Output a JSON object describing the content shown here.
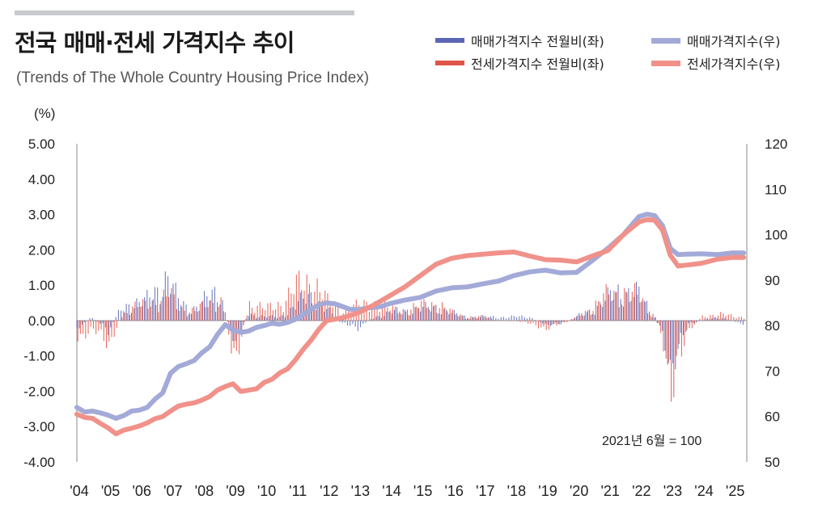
{
  "header": {
    "title": "전국 매매·전세 가격지수 추이",
    "subtitle": "(Trends of The Whole Country Housing Price Index)"
  },
  "legend": {
    "items": [
      {
        "label": "매매가격지수 전월비(좌)",
        "color": "#5b67b3"
      },
      {
        "label": "전세가격지수 전월비(좌)",
        "color": "#e0554a"
      },
      {
        "label": "매매가격지수(우)",
        "color": "#a3aad8"
      },
      {
        "label": "전세가격지수(우)",
        "color": "#f0918a"
      }
    ]
  },
  "chart_data": {
    "type": "bar+line",
    "title": "전국 매매·전세 가격지수 추이",
    "subtitle": "(Trends of The Whole Country Housing Price Index)",
    "y_left_label": "(%)",
    "y_left_range": [
      -4.0,
      5.0
    ],
    "y_left_ticks": [
      "5.00",
      "4.00",
      "3.00",
      "2.00",
      "1.00",
      "0.00",
      "-1.00",
      "-2.00",
      "-3.00",
      "-4.00"
    ],
    "y_right_range": [
      50,
      120
    ],
    "y_right_ticks": [
      "120",
      "110",
      "100",
      "90",
      "80",
      "70",
      "60",
      "50"
    ],
    "x_ticks": [
      "'04",
      "'05",
      "'06",
      "'07",
      "'08",
      "'09",
      "'10",
      "'11",
      "'12",
      "'13",
      "'14",
      "'15",
      "'16",
      "'17",
      "'18",
      "'19",
      "'20",
      "'21",
      "'22",
      "'23",
      "'24",
      "'25"
    ],
    "annotation": "2021년 6월 = 100",
    "series": [
      {
        "name": "매매가격지수(우)",
        "axis": "right",
        "color": "#a3aad8",
        "x": [
          2004.0,
          2004.25,
          2004.5,
          2004.75,
          2005.0,
          2005.25,
          2005.5,
          2005.75,
          2006.0,
          2006.25,
          2006.5,
          2006.75,
          2007.0,
          2007.25,
          2007.5,
          2007.75,
          2008.0,
          2008.25,
          2008.5,
          2008.75,
          2009.0,
          2009.25,
          2009.5,
          2009.75,
          2010.0,
          2010.25,
          2010.5,
          2010.75,
          2011.0,
          2011.25,
          2011.5,
          2011.75,
          2012.0,
          2012.25,
          2012.5,
          2012.75,
          2013.0,
          2013.25,
          2013.5,
          2013.75,
          2014.0,
          2014.5,
          2015.0,
          2015.5,
          2016.0,
          2016.5,
          2017.0,
          2017.5,
          2018.0,
          2018.5,
          2019.0,
          2019.5,
          2020.0,
          2020.5,
          2021.0,
          2021.5,
          2022.0,
          2022.25,
          2022.5,
          2022.75,
          2023.0,
          2023.25,
          2023.5,
          2024.0,
          2024.5,
          2025.0,
          2025.35
        ],
        "values": [
          62.0,
          61.0,
          61.2,
          60.8,
          60.3,
          59.6,
          60.2,
          61.2,
          61.4,
          62.0,
          63.8,
          65.2,
          69.5,
          71.0,
          71.6,
          72.3,
          74.0,
          75.3,
          78.0,
          80.2,
          79.0,
          78.5,
          78.8,
          79.6,
          80.0,
          80.5,
          80.3,
          80.7,
          81.4,
          82.5,
          83.6,
          84.6,
          85.0,
          84.8,
          84.2,
          83.6,
          83.5,
          83.8,
          84.0,
          84.2,
          84.8,
          85.6,
          86.2,
          87.6,
          88.3,
          88.5,
          89.2,
          89.8,
          91.0,
          91.8,
          92.2,
          91.6,
          91.7,
          94.3,
          97.0,
          100.0,
          104.0,
          104.5,
          104.2,
          102.0,
          97.0,
          95.6,
          95.7,
          95.8,
          95.6,
          96.0,
          96.0
        ]
      },
      {
        "name": "전세가격지수(우)",
        "axis": "right",
        "color": "#f0918a",
        "x": [
          2004.0,
          2004.25,
          2004.5,
          2004.75,
          2005.0,
          2005.25,
          2005.5,
          2005.75,
          2006.0,
          2006.25,
          2006.5,
          2006.75,
          2007.0,
          2007.25,
          2007.5,
          2007.75,
          2008.0,
          2008.25,
          2008.5,
          2008.75,
          2009.0,
          2009.25,
          2009.5,
          2009.75,
          2010.0,
          2010.25,
          2010.5,
          2010.75,
          2011.0,
          2011.25,
          2011.5,
          2011.75,
          2012.0,
          2012.5,
          2013.0,
          2013.5,
          2014.0,
          2014.5,
          2015.0,
          2015.5,
          2016.0,
          2016.5,
          2017.0,
          2017.5,
          2018.0,
          2018.5,
          2019.0,
          2019.5,
          2020.0,
          2020.5,
          2021.0,
          2021.5,
          2022.0,
          2022.25,
          2022.5,
          2022.75,
          2023.0,
          2023.25,
          2023.5,
          2024.0,
          2024.5,
          2025.0,
          2025.35
        ],
        "values": [
          60.5,
          59.8,
          59.6,
          58.5,
          57.5,
          56.2,
          57.0,
          57.4,
          57.9,
          58.6,
          59.5,
          60.0,
          61.2,
          62.3,
          62.7,
          63.0,
          63.6,
          64.4,
          65.8,
          66.6,
          67.2,
          65.5,
          65.8,
          66.1,
          67.5,
          68.2,
          69.6,
          70.5,
          72.5,
          74.8,
          76.8,
          79.2,
          81.1,
          81.7,
          82.8,
          84.5,
          86.5,
          88.5,
          91.0,
          93.5,
          94.8,
          95.4,
          95.7,
          96.0,
          96.2,
          95.3,
          94.5,
          94.4,
          94.0,
          95.3,
          96.5,
          100.0,
          102.8,
          103.3,
          103.2,
          101.0,
          95.5,
          93.1,
          93.3,
          93.7,
          94.6,
          95.0,
          95.0
        ]
      },
      {
        "name": "매매가격지수 전월비(좌)",
        "axis": "left",
        "color": "#5b67b3",
        "x": [
          2004.0,
          2004.5,
          2005.0,
          2005.4,
          2005.7,
          2006.2,
          2006.6,
          2006.9,
          2007.2,
          2007.6,
          2008.2,
          2008.6,
          2008.9,
          2009.1,
          2009.5,
          2010.0,
          2010.5,
          2011.0,
          2011.5,
          2012.0,
          2012.5,
          2013.0,
          2013.5,
          2014.0,
          2014.5,
          2015.0,
          2015.5,
          2016.0,
          2016.5,
          2017.0,
          2017.5,
          2018.0,
          2018.5,
          2019.0,
          2019.5,
          2020.0,
          2020.5,
          2021.0,
          2021.5,
          2022.0,
          2022.5,
          2022.8,
          2023.0,
          2023.3,
          2023.6,
          2024.0,
          2024.5,
          2025.0,
          2025.3
        ],
        "values": [
          -0.2,
          0.1,
          -0.3,
          0.3,
          0.5,
          0.5,
          0.9,
          1.3,
          0.6,
          0.3,
          0.6,
          0.8,
          -0.3,
          -0.5,
          0.2,
          0.1,
          0.1,
          0.4,
          0.7,
          0.3,
          -0.1,
          -0.2,
          0.1,
          0.2,
          0.3,
          0.3,
          0.4,
          0.2,
          0.1,
          0.1,
          0.1,
          0.1,
          0.1,
          -0.1,
          -0.1,
          0.1,
          0.3,
          0.6,
          0.9,
          0.7,
          0.1,
          -0.5,
          -1.2,
          -0.7,
          -0.1,
          0.0,
          0.1,
          0.0,
          -0.1
        ]
      },
      {
        "name": "전세가격지수 전월비(좌)",
        "axis": "left",
        "color": "#e0554a",
        "x": [
          2004.0,
          2004.5,
          2005.0,
          2005.4,
          2005.7,
          2006.2,
          2006.6,
          2006.9,
          2007.2,
          2007.6,
          2008.2,
          2008.6,
          2008.9,
          2009.1,
          2009.5,
          2010.0,
          2010.5,
          2011.0,
          2011.5,
          2012.0,
          2012.5,
          2013.0,
          2013.5,
          2014.0,
          2014.5,
          2015.0,
          2015.5,
          2016.0,
          2016.5,
          2017.0,
          2017.5,
          2018.0,
          2018.5,
          2019.0,
          2019.5,
          2020.0,
          2020.5,
          2021.0,
          2021.5,
          2022.0,
          2022.5,
          2022.8,
          2023.0,
          2023.3,
          2023.6,
          2024.0,
          2024.5,
          2025.0,
          2025.3
        ],
        "values": [
          -0.4,
          -0.3,
          -0.6,
          0.1,
          0.4,
          0.4,
          0.6,
          0.8,
          0.3,
          0.3,
          0.4,
          0.6,
          -0.6,
          -0.9,
          0.5,
          0.3,
          0.5,
          0.9,
          1.2,
          0.5,
          0.3,
          0.4,
          0.5,
          0.3,
          0.3,
          0.4,
          0.5,
          0.2,
          0.1,
          0.1,
          0.0,
          0.0,
          -0.1,
          -0.2,
          -0.1,
          0.1,
          0.4,
          0.7,
          0.8,
          0.6,
          0.1,
          -0.7,
          -1.8,
          -1.1,
          -0.2,
          0.1,
          0.2,
          0.1,
          0.1
        ]
      }
    ]
  }
}
